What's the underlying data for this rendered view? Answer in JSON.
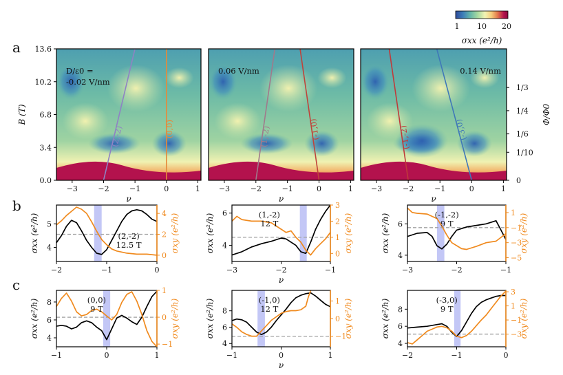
{
  "figure": {
    "panel_letters": [
      "a",
      "b",
      "c"
    ],
    "colorbar": {
      "ticks": [
        "1",
        "10",
        "20"
      ],
      "label": "σxx (e²/h)",
      "colors": [
        "#2e4a9a",
        "#3d7db8",
        "#65b6a9",
        "#a6d9a0",
        "#f3f4b4",
        "#f7cf7d",
        "#e47a4c",
        "#b3124d",
        "#8e0b3f"
      ]
    }
  },
  "chart_data": [
    {
      "id": "a1",
      "type": "heatmap",
      "title": "",
      "annotation": "D/ε0 =\n-0.02 V/nm",
      "xlabel": "ν",
      "ylabel": "B (T)",
      "xlim": [
        -3.5,
        1.1
      ],
      "ylim": [
        0,
        13.6
      ],
      "xticks": [
        "−3",
        "−2",
        "−1",
        "0",
        "1"
      ],
      "yticks": [
        "0.0",
        "3.4",
        "6.8",
        "10.2",
        "13.6"
      ],
      "lines": [
        {
          "label": "(2,-2)",
          "color": "#8f82c4",
          "x_at_B0": -2.0,
          "x_at_Bmax": -1.0
        },
        {
          "label": "(0,0)",
          "color": "#e58a3a",
          "x_at_B0": 0.0,
          "x_at_Bmax": 0.0
        }
      ]
    },
    {
      "id": "a2",
      "type": "heatmap",
      "annotation": "0.06 V/nm",
      "xlabel": "ν",
      "xlim": [
        -3.5,
        1.1
      ],
      "ylim": [
        0,
        13.6
      ],
      "xticks": [
        "−3",
        "−2",
        "−1",
        "0",
        "1"
      ],
      "lines": [
        {
          "label": "(1,-2)",
          "color": "#a07a8c",
          "x_at_B0": -2.0,
          "x_at_Bmax": -1.4
        },
        {
          "label": "(-1,0)",
          "color": "#c0433a",
          "x_at_B0": 0.0,
          "x_at_Bmax": -0.6
        }
      ]
    },
    {
      "id": "a3",
      "type": "heatmap",
      "annotation": "0.14 V/nm",
      "xlabel": "ν",
      "xlim": [
        -3.5,
        1.1
      ],
      "ylim": [
        0,
        13.6
      ],
      "xticks": [
        "−3",
        "−2",
        "−1",
        "0",
        "1"
      ],
      "right_axis": {
        "label": "Φ/Φ0",
        "ticks": [
          "1/3",
          "1/4",
          "1/6",
          "1/10",
          "0"
        ],
        "tick_B": [
          9.6,
          7.2,
          4.8,
          2.9,
          0
        ]
      },
      "lines": [
        {
          "label": "(-1,-2)",
          "color": "#c03a3a",
          "x_at_B0": -2.0,
          "x_at_Bmax": -2.6
        },
        {
          "label": "(-3,0)",
          "color": "#3f78b8",
          "x_at_B0": 0.0,
          "x_at_Bmax": -1.1
        }
      ]
    },
    {
      "id": "b1",
      "type": "line",
      "annotation": "(2,-2)\n12.5 T",
      "xlabel": "",
      "ylabel": "σxx (e²/h)",
      "y2label": "σxy (e²/h)",
      "xlim": [
        -2,
        0
      ],
      "ylim": [
        3.4,
        5.8
      ],
      "y2lim": [
        -0.6,
        4.8
      ],
      "xticks": [
        "−2",
        "−1",
        "0"
      ],
      "yticks": [
        "4",
        "5"
      ],
      "y2ticks": [
        "0",
        "2",
        "4"
      ],
      "band": [
        -1.25,
        -1.1
      ],
      "dash_y2": 2.0,
      "series": [
        {
          "name": "σxx",
          "color": "#000000",
          "axis": "left",
          "x": [
            -2.0,
            -1.9,
            -1.8,
            -1.7,
            -1.6,
            -1.5,
            -1.4,
            -1.3,
            -1.2,
            -1.1,
            -1.0,
            -0.9,
            -0.8,
            -0.7,
            -0.6,
            -0.5,
            -0.4,
            -0.3,
            -0.2,
            -0.1,
            0.0
          ],
          "values": [
            4.2,
            4.5,
            4.9,
            5.15,
            5.05,
            4.7,
            4.3,
            4.0,
            3.75,
            3.7,
            3.9,
            4.3,
            4.7,
            5.1,
            5.4,
            5.55,
            5.6,
            5.55,
            5.4,
            5.2,
            5.1
          ]
        },
        {
          "name": "σxy",
          "color": "#f08a1e",
          "axis": "right",
          "x": [
            -2.0,
            -1.9,
            -1.8,
            -1.7,
            -1.6,
            -1.5,
            -1.4,
            -1.3,
            -1.2,
            -1.1,
            -1.0,
            -0.9,
            -0.8,
            -0.6,
            -0.4,
            -0.2,
            0.0
          ],
          "values": [
            2.9,
            3.3,
            3.8,
            4.2,
            4.6,
            4.4,
            4.0,
            3.2,
            2.3,
            1.5,
            1.0,
            0.6,
            0.4,
            0.2,
            0.1,
            0.1,
            0.0
          ]
        }
      ]
    },
    {
      "id": "b2",
      "type": "line",
      "annotation": "(1,-2)\n12 T",
      "xlabel": "ν",
      "xlim": [
        -3,
        -1
      ],
      "ylim": [
        3.0,
        6.5
      ],
      "y2lim": [
        -0.5,
        3.0
      ],
      "xticks": [
        "−3",
        "−2",
        "−1"
      ],
      "yticks": [
        "4",
        "6"
      ],
      "y2ticks": [
        "0",
        "1",
        "2",
        "3"
      ],
      "band": [
        -1.62,
        -1.48
      ],
      "dash_y2": 1.0,
      "series": [
        {
          "name": "σxx",
          "color": "#000000",
          "axis": "left",
          "x": [
            -3.0,
            -2.8,
            -2.6,
            -2.4,
            -2.2,
            -2.0,
            -1.9,
            -1.8,
            -1.7,
            -1.6,
            -1.5,
            -1.4,
            -1.3,
            -1.2,
            -1.1,
            -1.0
          ],
          "values": [
            3.4,
            3.6,
            3.9,
            4.1,
            4.25,
            4.45,
            4.4,
            4.2,
            4.0,
            3.6,
            3.5,
            4.2,
            5.0,
            5.6,
            6.1,
            6.5
          ]
        },
        {
          "name": "σxy",
          "color": "#f08a1e",
          "axis": "right",
          "x": [
            -3.0,
            -2.9,
            -2.8,
            -2.6,
            -2.4,
            -2.2,
            -2.0,
            -1.9,
            -1.8,
            -1.7,
            -1.6,
            -1.5,
            -1.4,
            -1.3,
            -1.2,
            -1.1,
            -1.0
          ],
          "values": [
            2.0,
            2.3,
            2.1,
            2.0,
            2.0,
            1.9,
            1.5,
            1.3,
            1.4,
            1.0,
            0.7,
            0.2,
            -0.1,
            0.3,
            0.6,
            0.9,
            1.3
          ]
        }
      ]
    },
    {
      "id": "b3",
      "type": "line",
      "annotation": "(-1,-2)\n9 T",
      "xlabel": "",
      "xlim": [
        -3,
        -1
      ],
      "ylim": [
        3.6,
        7.2
      ],
      "y2lim": [
        -5.5,
        2.0
      ],
      "xticks": [
        "−3",
        "−2",
        "−1"
      ],
      "yticks": [
        "4",
        "6"
      ],
      "y2ticks": [
        "1",
        "−1",
        "−3",
        "−5"
      ],
      "band": [
        -2.4,
        -2.25
      ],
      "dash_y2": -1.0,
      "series": [
        {
          "name": "σxx",
          "color": "#000000",
          "axis": "left",
          "x": [
            -3.0,
            -2.8,
            -2.6,
            -2.5,
            -2.4,
            -2.3,
            -2.2,
            -2.1,
            -2.0,
            -1.8,
            -1.6,
            -1.4,
            -1.3,
            -1.2,
            -1.1,
            -1.0
          ],
          "values": [
            5.2,
            5.4,
            5.45,
            5.2,
            4.6,
            4.4,
            4.7,
            5.2,
            5.6,
            5.8,
            5.9,
            6.0,
            6.1,
            6.2,
            5.6,
            5.0
          ]
        },
        {
          "name": "σxy",
          "color": "#f08a1e",
          "axis": "right",
          "x": [
            -3.0,
            -2.9,
            -2.8,
            -2.6,
            -2.4,
            -2.3,
            -2.2,
            -2.1,
            -2.0,
            -1.9,
            -1.8,
            -1.6,
            -1.4,
            -1.2,
            -1.1,
            -1.0
          ],
          "values": [
            1.6,
            1.0,
            0.9,
            0.8,
            0.2,
            -0.8,
            -2.0,
            -3.0,
            -3.4,
            -3.8,
            -3.9,
            -3.5,
            -3.0,
            -2.8,
            -2.3,
            -1.8
          ]
        }
      ]
    },
    {
      "id": "c1",
      "type": "line",
      "annotation": "(0,0)\n9 T",
      "xlabel": "",
      "ylabel": "σxx (e²/h)",
      "y2label": "σxy (e²/h)",
      "xlim": [
        -1,
        1
      ],
      "ylim": [
        3.0,
        9.3
      ],
      "y2lim": [
        -1.1,
        1.0
      ],
      "xticks": [
        "−1",
        "0",
        "1"
      ],
      "yticks": [
        "4",
        "6",
        "8"
      ],
      "y2ticks": [
        "1",
        "0",
        "−1"
      ],
      "band": [
        -0.07,
        0.07
      ],
      "dash_y2": 0.0,
      "series": [
        {
          "name": "σxx",
          "color": "#000000",
          "axis": "left",
          "x": [
            -1.0,
            -0.9,
            -0.8,
            -0.7,
            -0.6,
            -0.5,
            -0.4,
            -0.3,
            -0.2,
            -0.1,
            0.0,
            0.1,
            0.2,
            0.3,
            0.4,
            0.5,
            0.6,
            0.7,
            0.8,
            0.9,
            1.0
          ],
          "values": [
            5.3,
            5.4,
            5.3,
            5.0,
            5.2,
            5.7,
            5.9,
            5.7,
            5.2,
            4.8,
            3.8,
            5.0,
            6.2,
            6.5,
            6.2,
            5.8,
            5.5,
            6.3,
            7.5,
            8.6,
            9.2
          ]
        },
        {
          "name": "σxy",
          "color": "#f08a1e",
          "axis": "right",
          "x": [
            -1.0,
            -0.9,
            -0.8,
            -0.7,
            -0.6,
            -0.5,
            -0.4,
            -0.3,
            -0.2,
            -0.1,
            0.0,
            0.1,
            0.2,
            0.3,
            0.4,
            0.5,
            0.6,
            0.7,
            0.8,
            0.9,
            1.0
          ],
          "values": [
            0.4,
            0.7,
            0.9,
            0.6,
            0.2,
            0.05,
            0.1,
            0.25,
            0.3,
            0.2,
            0.05,
            -0.1,
            0.1,
            0.55,
            0.85,
            0.95,
            0.6,
            0.1,
            -0.5,
            -0.9,
            -1.1
          ]
        }
      ]
    },
    {
      "id": "c2",
      "type": "line",
      "annotation": "(-1,0)\n12 T",
      "xlabel": "ν",
      "xlim": [
        -1,
        1
      ],
      "ylim": [
        3.6,
        10.5
      ],
      "y2lim": [
        -1.6,
        1.6
      ],
      "xticks": [
        "−1",
        "0",
        "1"
      ],
      "yticks": [
        "4",
        "6",
        "8"
      ],
      "y2ticks": [
        "1",
        "0",
        "−1"
      ],
      "band": [
        -0.48,
        -0.33
      ],
      "dash_y2": -1.0,
      "series": [
        {
          "name": "σxx",
          "color": "#000000",
          "axis": "left",
          "x": [
            -1.0,
            -0.9,
            -0.8,
            -0.7,
            -0.6,
            -0.5,
            -0.4,
            -0.3,
            -0.2,
            -0.1,
            0.0,
            0.1,
            0.2,
            0.3,
            0.4,
            0.5,
            0.6,
            0.7,
            0.8,
            0.9,
            1.0
          ],
          "values": [
            6.8,
            7.0,
            6.9,
            6.6,
            6.0,
            5.4,
            5.1,
            5.4,
            6.0,
            6.8,
            7.5,
            8.2,
            9.0,
            9.6,
            9.9,
            10.1,
            10.2,
            9.8,
            9.3,
            8.8,
            8.5
          ]
        },
        {
          "name": "σxy",
          "color": "#f08a1e",
          "axis": "right",
          "x": [
            -1.0,
            -0.9,
            -0.8,
            -0.7,
            -0.6,
            -0.5,
            -0.4,
            -0.3,
            -0.2,
            -0.1,
            0.0,
            0.1,
            0.2,
            0.3,
            0.4,
            0.5,
            0.55,
            0.6
          ],
          "values": [
            -0.3,
            -0.5,
            -0.75,
            -0.9,
            -1.0,
            -1.0,
            -0.7,
            -0.4,
            -0.1,
            0.1,
            0.3,
            0.4,
            0.45,
            0.45,
            0.5,
            0.7,
            1.2,
            1.6
          ]
        }
      ]
    },
    {
      "id": "c3",
      "type": "line",
      "annotation": "(-3,0)\n9 T",
      "xlabel": "",
      "xlim": [
        -2,
        0
      ],
      "ylim": [
        3.6,
        10.2
      ],
      "y2lim": [
        -4.8,
        3.2
      ],
      "xticks": [
        "−2",
        "−1",
        "0"
      ],
      "yticks": [
        "4",
        "6",
        "8"
      ],
      "y2ticks": [
        "3",
        "1",
        "−1",
        "−3"
      ],
      "band": [
        -1.05,
        -0.92
      ],
      "dash_y2": -3.0,
      "series": [
        {
          "name": "σxx",
          "color": "#000000",
          "axis": "left",
          "x": [
            -2.0,
            -1.8,
            -1.6,
            -1.4,
            -1.3,
            -1.2,
            -1.1,
            -1.0,
            -0.9,
            -0.8,
            -0.7,
            -0.6,
            -0.5,
            -0.4,
            -0.3,
            -0.2,
            -0.1,
            0.0
          ],
          "values": [
            5.8,
            5.9,
            6.0,
            6.2,
            6.3,
            6.0,
            5.3,
            4.8,
            5.5,
            6.5,
            7.5,
            8.3,
            8.8,
            9.1,
            9.3,
            9.5,
            9.6,
            9.6
          ]
        },
        {
          "name": "σxy",
          "color": "#f08a1e",
          "axis": "right",
          "x": [
            -2.0,
            -1.9,
            -1.8,
            -1.7,
            -1.6,
            -1.5,
            -1.4,
            -1.3,
            -1.2,
            -1.1,
            -1.0,
            -0.9,
            -0.8,
            -0.7,
            -0.6,
            -0.5,
            -0.4,
            -0.3,
            -0.2,
            -0.1,
            0.0
          ],
          "values": [
            -4.2,
            -4.4,
            -3.8,
            -3.2,
            -2.6,
            -2.3,
            -2.0,
            -1.9,
            -2.1,
            -2.6,
            -3.3,
            -3.5,
            -3.2,
            -2.6,
            -1.8,
            -1.0,
            -0.3,
            0.6,
            1.5,
            2.4,
            3.1
          ]
        }
      ]
    }
  ]
}
